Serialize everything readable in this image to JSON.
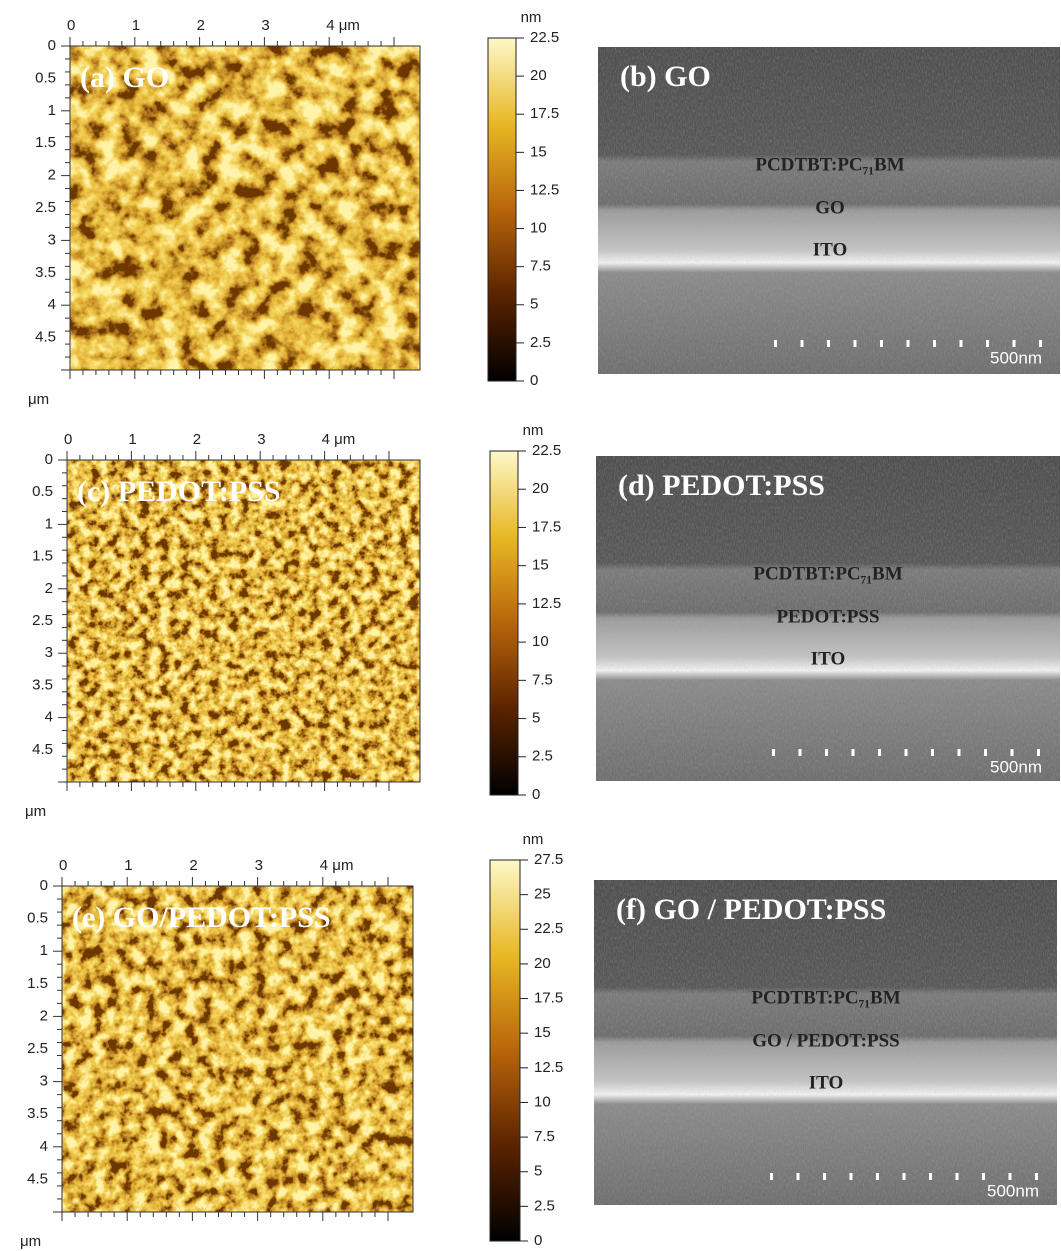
{
  "panels": [
    {
      "afm": {
        "label": "(a) GO",
        "x_ticks": [
          "0",
          "1",
          "2",
          "3",
          "4 μm"
        ],
        "y_ticks": [
          "0",
          "0.5",
          "1",
          "1.5",
          "2",
          "2.5",
          "3",
          "3.5",
          "4",
          "4.5"
        ],
        "unit": "μm"
      },
      "colorbar": {
        "unit": "nm",
        "ticks": [
          "22.5",
          "20",
          "17.5",
          "15",
          "12.5",
          "10",
          "7.5",
          "5",
          "2.5",
          "0"
        ]
      },
      "sem": {
        "label": "(b) GO",
        "layers": [
          "PCDTBT:PC₇₁BM",
          "GO",
          "ITO"
        ],
        "scale_bar": "500nm"
      }
    },
    {
      "afm": {
        "label": "(c) PEDOT:PSS",
        "x_ticks": [
          "0",
          "1",
          "2",
          "3",
          "4 μm"
        ],
        "y_ticks": [
          "0",
          "0.5",
          "1",
          "1.5",
          "2",
          "2.5",
          "3",
          "3.5",
          "4",
          "4.5"
        ],
        "unit": "μm"
      },
      "colorbar": {
        "unit": "nm",
        "ticks": [
          "22.5",
          "20",
          "17.5",
          "15",
          "12.5",
          "10",
          "7.5",
          "5",
          "2.5",
          "0"
        ]
      },
      "sem": {
        "label": "(d) PEDOT:PSS",
        "layers": [
          "PCDTBT:PC₇₁BM",
          "PEDOT:PSS",
          "ITO"
        ],
        "scale_bar": "500nm"
      }
    },
    {
      "afm": {
        "label": "(e) GO/PEDOT:PSS",
        "x_ticks": [
          "0",
          "1",
          "2",
          "3",
          "4 μm"
        ],
        "y_ticks": [
          "0",
          "0.5",
          "1",
          "1.5",
          "2",
          "2.5",
          "3",
          "3.5",
          "4",
          "4.5"
        ],
        "unit": "μm"
      },
      "colorbar": {
        "unit": "nm",
        "ticks": [
          "27.5",
          "25",
          "22.5",
          "20",
          "17.5",
          "15",
          "12.5",
          "10",
          "7.5",
          "5",
          "2.5",
          "0"
        ]
      },
      "sem": {
        "label": "(f) GO / PEDOT:PSS",
        "layers": [
          "PCDTBT:PC₇₁BM",
          "GO / PEDOT:PSS",
          "ITO"
        ],
        "scale_bar": "500nm"
      }
    }
  ]
}
